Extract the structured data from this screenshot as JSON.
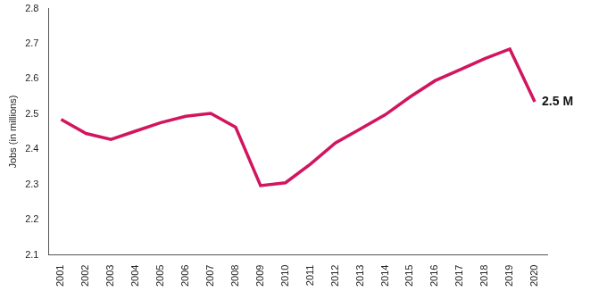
{
  "chart_data": {
    "type": "line",
    "y_label": "Jobs (in millions)",
    "categories": [
      "2001",
      "2002",
      "2003",
      "2004",
      "2005",
      "2006",
      "2007",
      "2008",
      "2009",
      "2010",
      "2011",
      "2012",
      "2013",
      "2014",
      "2015",
      "2016",
      "2017",
      "2018",
      "2019",
      "2020"
    ],
    "values": [
      2.485,
      2.445,
      2.428,
      2.452,
      2.476,
      2.494,
      2.502,
      2.463,
      2.297,
      2.305,
      2.358,
      2.418,
      2.458,
      2.498,
      2.549,
      2.595,
      2.626,
      2.658,
      2.685,
      2.535
    ],
    "color": "#d1155f",
    "ylim": [
      2.1,
      2.8
    ],
    "yticks": [
      2.1,
      2.2,
      2.3,
      2.4,
      2.5,
      2.6,
      2.7,
      2.8
    ],
    "grid": false,
    "annotations": [
      {
        "x": "2020",
        "y": 2.535,
        "text": "2.5 M"
      }
    ]
  }
}
